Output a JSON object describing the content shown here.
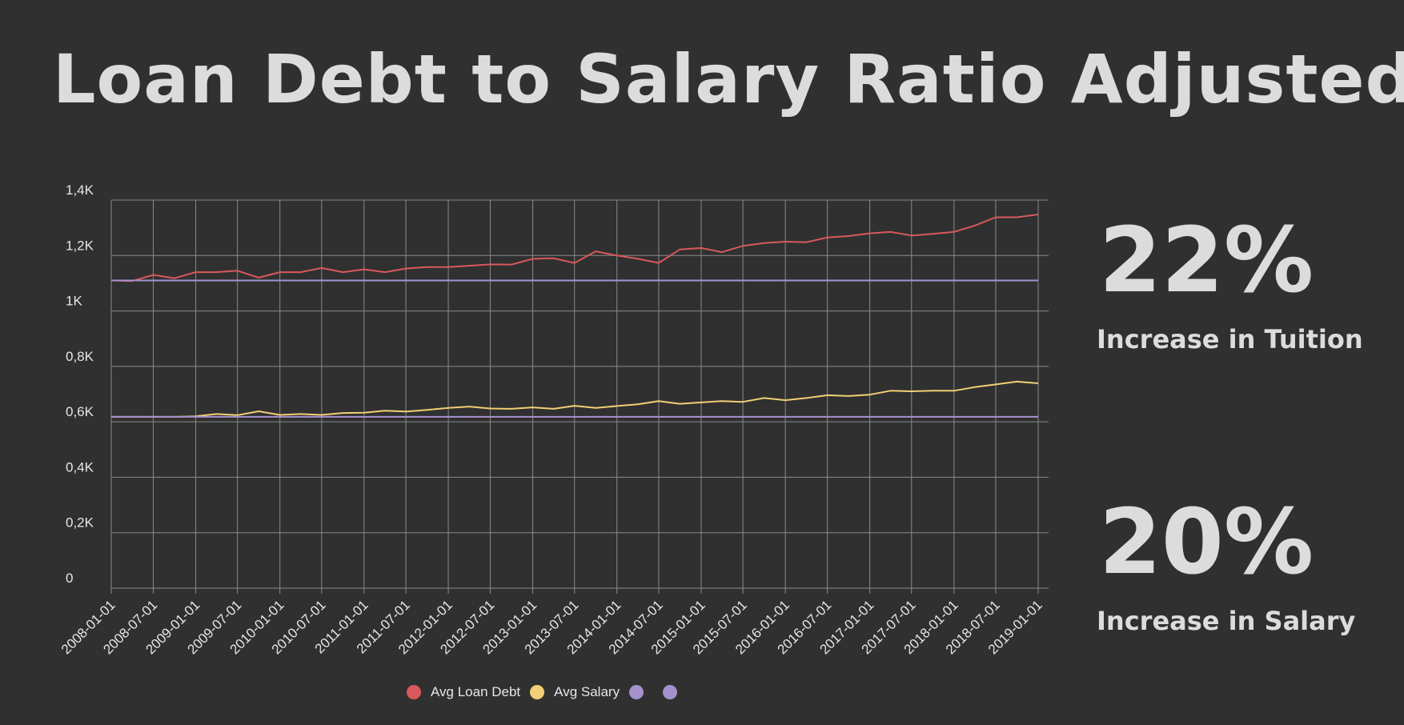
{
  "title": "Loan Debt to Salary Ratio Adjusted",
  "kpis": [
    {
      "value": "22%",
      "label": "Increase in Tuition"
    },
    {
      "value": "20%",
      "label": "Increase in Salary"
    }
  ],
  "chart_data": {
    "type": "line",
    "ylim": [
      0,
      1400
    ],
    "y_ticks": [
      {
        "value": 0,
        "label": "0"
      },
      {
        "value": 200,
        "label": "0,2K"
      },
      {
        "value": 400,
        "label": "0,4K"
      },
      {
        "value": 600,
        "label": "0,6K"
      },
      {
        "value": 800,
        "label": "0,8K"
      },
      {
        "value": 1000,
        "label": "1K"
      },
      {
        "value": 1200,
        "label": "1,2K"
      },
      {
        "value": 1400,
        "label": "1,4K"
      }
    ],
    "x_tick_labels": [
      "2008-01-01",
      "2008-07-01",
      "2009-01-01",
      "2009-07-01",
      "2010-01-01",
      "2010-07-01",
      "2011-01-01",
      "2011-07-01",
      "2012-01-01",
      "2012-07-01",
      "2013-01-01",
      "2013-07-01",
      "2014-01-01",
      "2014-07-01",
      "2015-01-01",
      "2015-07-01",
      "2016-01-01",
      "2016-07-01",
      "2017-01-01",
      "2017-07-01",
      "2018-01-01",
      "2018-07-01",
      "2019-01-01"
    ],
    "x": [
      "2008-01-01",
      "2008-04-01",
      "2008-07-01",
      "2008-10-01",
      "2009-01-01",
      "2009-04-01",
      "2009-07-01",
      "2009-10-01",
      "2010-01-01",
      "2010-04-01",
      "2010-07-01",
      "2010-10-01",
      "2011-01-01",
      "2011-04-01",
      "2011-07-01",
      "2011-10-01",
      "2012-01-01",
      "2012-04-01",
      "2012-07-01",
      "2012-10-01",
      "2013-01-01",
      "2013-04-01",
      "2013-07-01",
      "2013-10-01",
      "2014-01-01",
      "2014-04-01",
      "2014-07-01",
      "2014-10-01",
      "2015-01-01",
      "2015-04-01",
      "2015-07-01",
      "2015-10-01",
      "2016-01-01",
      "2016-04-01",
      "2016-07-01",
      "2016-10-01",
      "2017-01-01",
      "2017-04-01",
      "2017-07-01",
      "2017-10-01",
      "2018-01-01",
      "2018-04-01",
      "2018-07-01",
      "2018-10-01",
      "2019-01-01"
    ],
    "series": [
      {
        "name": "Avg Loan Debt",
        "color": "#d9585c",
        "values": [
          1110,
          1108,
          1130,
          1118,
          1140,
          1140,
          1145,
          1120,
          1140,
          1140,
          1155,
          1140,
          1150,
          1140,
          1153,
          1158,
          1158,
          1163,
          1168,
          1167,
          1188,
          1190,
          1173,
          1215,
          1200,
          1188,
          1173,
          1222,
          1227,
          1212,
          1235,
          1245,
          1250,
          1248,
          1265,
          1270,
          1280,
          1285,
          1272,
          1278,
          1285,
          1308,
          1338,
          1338,
          1348
        ]
      },
      {
        "name": "Avg Salary",
        "color": "#f2cf74",
        "values": [
          618,
          618,
          618,
          618,
          620,
          628,
          624,
          638,
          625,
          628,
          625,
          632,
          633,
          640,
          637,
          643,
          650,
          655,
          648,
          647,
          652,
          647,
          658,
          650,
          657,
          663,
          675,
          665,
          670,
          675,
          672,
          686,
          678,
          686,
          696,
          693,
          698,
          712,
          710,
          712,
          712,
          725,
          735,
          745,
          739
        ]
      },
      {
        "name": "",
        "color": "#a592cc",
        "values": [
          1110,
          1110,
          1110,
          1110,
          1110,
          1110,
          1110,
          1110,
          1110,
          1110,
          1110,
          1110,
          1110,
          1110,
          1110,
          1110,
          1110,
          1110,
          1110,
          1110,
          1110,
          1110,
          1110,
          1110,
          1110,
          1110,
          1110,
          1110,
          1110,
          1110,
          1110,
          1110,
          1110,
          1110,
          1110,
          1110,
          1110,
          1110,
          1110,
          1110,
          1110,
          1110,
          1110,
          1110,
          1110
        ]
      },
      {
        "name": "",
        "color": "#a592cc",
        "values": [
          618,
          618,
          618,
          618,
          618,
          618,
          618,
          618,
          618,
          618,
          618,
          618,
          618,
          618,
          618,
          618,
          618,
          618,
          618,
          618,
          618,
          618,
          618,
          618,
          618,
          618,
          618,
          618,
          618,
          618,
          618,
          618,
          618,
          618,
          618,
          618,
          618,
          618,
          618,
          618,
          618,
          618,
          618,
          618,
          618
        ]
      }
    ],
    "grid": true,
    "legend_position": "bottom-center",
    "background_color": "#303030",
    "grid_color": "#8a8a8a"
  }
}
